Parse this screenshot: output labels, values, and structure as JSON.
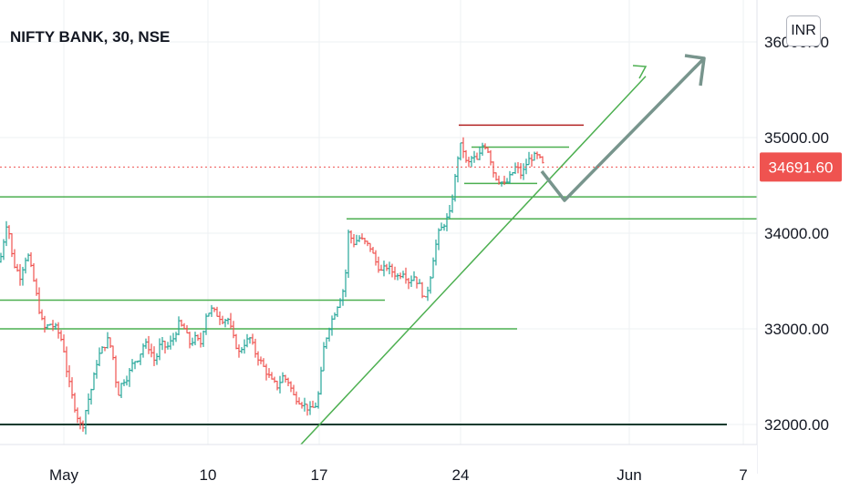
{
  "chart_data": {
    "type": "ohlc",
    "title": "NIFTY BANK, 30, NSE",
    "currency": "INR",
    "last_price": "34691.60",
    "y_ticks": [
      "36000.00",
      "35000.00",
      "34000.00",
      "33000.00",
      "32000.00"
    ],
    "y_tick_values": [
      36000,
      35000,
      34000,
      33000,
      32000
    ],
    "x_ticks": [
      "May",
      "10",
      "17",
      "24",
      "Jun",
      "7"
    ],
    "ylim": [
      31700,
      36300
    ],
    "grid": true,
    "colors": {
      "up": "#26a69a",
      "down": "#ef5350",
      "trend_line": "#4caf50",
      "resistance": "#b22222",
      "support_dark": "#0d3b2e",
      "projection": "#78958d",
      "last_price_tag": "#ef5350",
      "grid": "#eef0f3"
    },
    "series_path": [
      [
        0,
        33700
      ],
      [
        8,
        34150
      ],
      [
        14,
        33700
      ],
      [
        22,
        33550
      ],
      [
        30,
        33800
      ],
      [
        37,
        33500
      ],
      [
        43,
        33200
      ],
      [
        48,
        33000
      ],
      [
        55,
        33050
      ],
      [
        62,
        33000
      ],
      [
        69,
        32850
      ],
      [
        74,
        32500
      ],
      [
        80,
        32250
      ],
      [
        86,
        32050
      ],
      [
        90,
        31950
      ],
      [
        95,
        32200
      ],
      [
        101,
        32400
      ],
      [
        107,
        32700
      ],
      [
        113,
        32800
      ],
      [
        119,
        32900
      ],
      [
        124,
        32700
      ],
      [
        129,
        32300
      ],
      [
        134,
        32450
      ],
      [
        140,
        32500
      ],
      [
        146,
        32650
      ],
      [
        152,
        32700
      ],
      [
        158,
        32850
      ],
      [
        164,
        32800
      ],
      [
        170,
        32650
      ],
      [
        176,
        32850
      ],
      [
        183,
        32800
      ],
      [
        190,
        32900
      ],
      [
        196,
        33050
      ],
      [
        202,
        33000
      ],
      [
        208,
        32850
      ],
      [
        214,
        32900
      ],
      [
        220,
        32850
      ],
      [
        226,
        33150
      ],
      [
        232,
        33200
      ],
      [
        238,
        33150
      ],
      [
        244,
        33100
      ],
      [
        250,
        33100
      ],
      [
        256,
        32900
      ],
      [
        262,
        32750
      ],
      [
        268,
        32850
      ],
      [
        274,
        32900
      ],
      [
        280,
        32750
      ],
      [
        286,
        32650
      ],
      [
        292,
        32550
      ],
      [
        298,
        32450
      ],
      [
        304,
        32400
      ],
      [
        310,
        32500
      ],
      [
        316,
        32450
      ],
      [
        322,
        32300
      ],
      [
        328,
        32250
      ],
      [
        334,
        32200
      ],
      [
        340,
        32150
      ],
      [
        346,
        32200
      ],
      [
        350,
        32350
      ],
      [
        355,
        32800
      ],
      [
        360,
        33000
      ],
      [
        366,
        33150
      ],
      [
        372,
        33300
      ],
      [
        378,
        33450
      ],
      [
        382,
        34000
      ],
      [
        388,
        33900
      ],
      [
        394,
        33950
      ],
      [
        400,
        33900
      ],
      [
        406,
        33850
      ],
      [
        412,
        33700
      ],
      [
        418,
        33600
      ],
      [
        424,
        33650
      ],
      [
        430,
        33600
      ],
      [
        436,
        33550
      ],
      [
        442,
        33600
      ],
      [
        448,
        33500
      ],
      [
        454,
        33550
      ],
      [
        460,
        33450
      ],
      [
        466,
        33300
      ],
      [
        471,
        33500
      ],
      [
        476,
        33800
      ],
      [
        481,
        34000
      ],
      [
        487,
        34100
      ],
      [
        493,
        34200
      ],
      [
        498,
        34500
      ],
      [
        502,
        34800
      ],
      [
        506,
        34950
      ],
      [
        512,
        34700
      ],
      [
        518,
        34800
      ],
      [
        524,
        34750
      ],
      [
        530,
        34950
      ],
      [
        536,
        34850
      ],
      [
        542,
        34600
      ],
      [
        548,
        34550
      ],
      [
        554,
        34500
      ],
      [
        560,
        34600
      ],
      [
        566,
        34700
      ],
      [
        572,
        34600
      ],
      [
        578,
        34750
      ],
      [
        584,
        34800
      ],
      [
        590,
        34800
      ],
      [
        596,
        34700
      ]
    ],
    "lines": [
      {
        "kind": "horizontal",
        "price": 34380,
        "from_x": 0,
        "to_x": 830,
        "color": "trend_line"
      },
      {
        "kind": "horizontal",
        "price": 34150,
        "from_x": 380,
        "to_x": 830,
        "color": "trend_line"
      },
      {
        "kind": "horizontal",
        "price": 33300,
        "from_x": 0,
        "to_x": 422,
        "color": "trend_line"
      },
      {
        "kind": "horizontal",
        "price": 33000,
        "from_x": 0,
        "to_x": 567,
        "color": "trend_line"
      },
      {
        "kind": "horizontal",
        "price": 32000,
        "from_x": 0,
        "to_x": 797,
        "color": "support_dark"
      },
      {
        "kind": "horizontal",
        "price": 35130,
        "from_x": 503,
        "to_x": 640,
        "color": "resistance"
      },
      {
        "kind": "horizontal",
        "price": 34900,
        "from_x": 517,
        "to_x": 624,
        "color": "trend_line"
      },
      {
        "kind": "horizontal",
        "price": 34520,
        "from_x": 509,
        "to_x": 589,
        "color": "trend_line"
      },
      {
        "kind": "diagonal",
        "p1": [
          325,
          31740
        ],
        "p2": [
          708,
          35640
        ],
        "color": "trend_line"
      }
    ]
  }
}
